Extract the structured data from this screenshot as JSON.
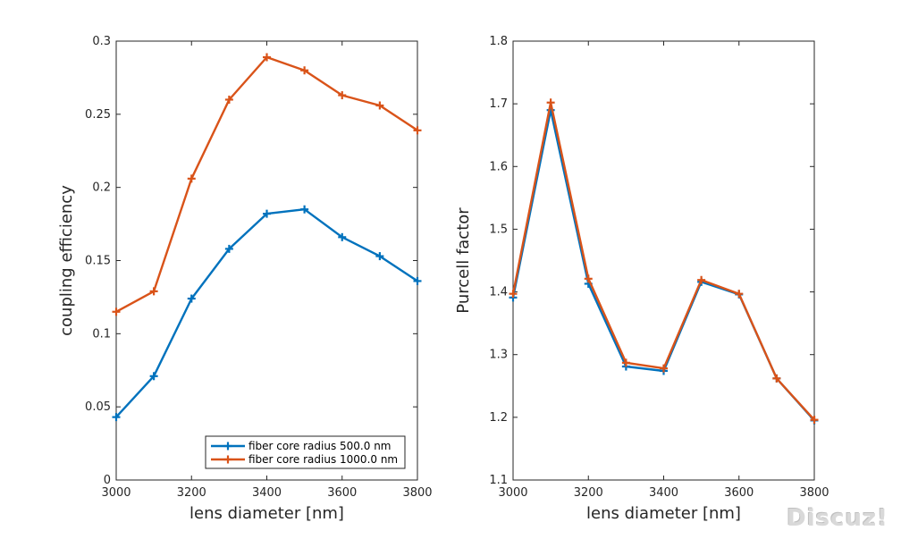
{
  "chart_data": [
    {
      "type": "line",
      "xlabel": "lens diameter [nm]",
      "ylabel": "coupling efficiency",
      "xlim": [
        3000,
        3800
      ],
      "ylim": [
        0,
        0.3
      ],
      "xticks": [
        3000,
        3200,
        3400,
        3600,
        3800
      ],
      "yticks": [
        0,
        0.05,
        0.1,
        0.15,
        0.2,
        0.25,
        0.3
      ],
      "x": [
        3000,
        3100,
        3200,
        3300,
        3400,
        3500,
        3600,
        3700,
        3800
      ],
      "series": [
        {
          "name": "fiber core radius 500.0 nm",
          "color": "#0072BD",
          "values": [
            0.043,
            0.071,
            0.124,
            0.158,
            0.182,
            0.185,
            0.166,
            0.153,
            0.136
          ]
        },
        {
          "name": "fiber core radius 1000.0 nm",
          "color": "#D95319",
          "values": [
            0.115,
            0.129,
            0.206,
            0.26,
            0.289,
            0.28,
            0.263,
            0.256,
            0.239
          ]
        }
      ],
      "legend": "bottom-right",
      "grid": false,
      "marker": "+"
    },
    {
      "type": "line",
      "xlabel": "lens diameter [nm]",
      "ylabel": "Purcell factor",
      "xlim": [
        3000,
        3800
      ],
      "ylim": [
        1.1,
        1.8
      ],
      "xticks": [
        3000,
        3200,
        3400,
        3600,
        3800
      ],
      "yticks": [
        1.1,
        1.2,
        1.3,
        1.4,
        1.5,
        1.6,
        1.7,
        1.8
      ],
      "x": [
        3000,
        3100,
        3200,
        3300,
        3400,
        3500,
        3600,
        3700,
        3800
      ],
      "series": [
        {
          "name": "fiber core radius 500.0 nm",
          "color": "#0072BD",
          "values": [
            1.391,
            1.69,
            1.413,
            1.281,
            1.274,
            1.416,
            1.396,
            1.262,
            1.195
          ]
        },
        {
          "name": "fiber core radius 1000.0 nm",
          "color": "#D95319",
          "values": [
            1.397,
            1.702,
            1.421,
            1.287,
            1.278,
            1.419,
            1.397,
            1.262,
            1.196
          ]
        }
      ],
      "legend": "none",
      "grid": false,
      "marker": "+"
    }
  ],
  "watermark": "Discuz!"
}
